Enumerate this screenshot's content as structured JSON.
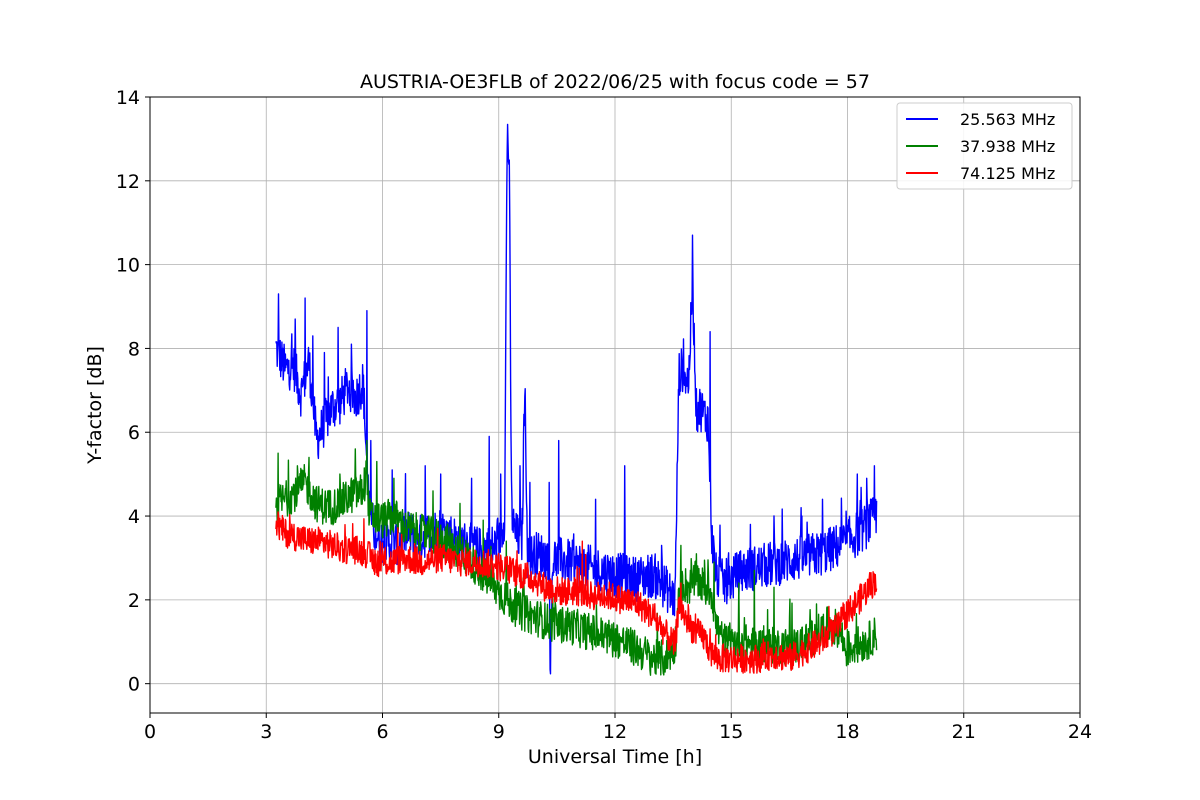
{
  "chart_data": {
    "type": "line",
    "title": "AUSTRIA-OE3FLB of 2022/06/25 with focus code = 57",
    "xlabel": "Universal Time [h]",
    "ylabel": "Y-factor [dB]",
    "xlim": [
      0,
      24
    ],
    "ylim": [
      -0.7,
      14
    ],
    "xticks": [
      0,
      3,
      6,
      9,
      12,
      15,
      18,
      21,
      24
    ],
    "yticks": [
      0,
      2,
      4,
      6,
      8,
      10,
      12,
      14
    ],
    "grid": true,
    "legend": "top-right",
    "series": [
      {
        "name": "25.563 MHz",
        "color": "#0000ff",
        "noise": 0.55,
        "x": [
          3.25,
          3.3,
          3.5,
          3.7,
          3.9,
          4.1,
          4.3,
          4.5,
          4.7,
          4.9,
          5.1,
          5.3,
          5.5,
          5.62,
          5.7,
          5.8,
          6.0,
          6.3,
          6.6,
          7.0,
          7.5,
          8.0,
          8.5,
          9.0,
          9.15,
          9.22,
          9.27,
          9.33,
          9.4,
          9.6,
          9.67,
          9.75,
          10.0,
          10.3,
          10.32,
          10.4,
          10.8,
          11.2,
          11.6,
          12.0,
          12.5,
          13.0,
          13.3,
          13.55,
          13.65,
          13.75,
          13.9,
          14.0,
          14.1,
          14.2,
          14.3,
          14.4,
          14.5,
          14.6,
          14.8,
          15.0,
          15.3,
          15.8,
          16.3,
          16.8,
          17.3,
          17.8,
          18.3,
          18.75
        ],
        "values": [
          8.0,
          7.9,
          7.5,
          7.6,
          6.9,
          7.7,
          5.8,
          6.2,
          6.6,
          6.7,
          7.1,
          6.8,
          7.2,
          4.8,
          4.0,
          3.6,
          3.4,
          3.3,
          3.6,
          3.5,
          3.7,
          3.4,
          3.2,
          3.3,
          4.0,
          13.3,
          12.4,
          4.2,
          3.6,
          3.4,
          7.2,
          3.0,
          3.1,
          3.0,
          0.2,
          3.0,
          2.9,
          2.8,
          2.7,
          2.6,
          2.5,
          2.6,
          2.3,
          2.0,
          7.4,
          7.5,
          7.2,
          9.6,
          6.5,
          6.6,
          6.4,
          6.3,
          3.5,
          2.6,
          2.4,
          2.5,
          2.7,
          2.8,
          2.9,
          3.0,
          3.1,
          3.3,
          3.6,
          4.0
        ],
        "spikes": [
          [
            3.32,
            9.3
          ],
          [
            3.75,
            8.7
          ],
          [
            4.0,
            9.2
          ],
          [
            4.2,
            8.3
          ],
          [
            4.5,
            7.9
          ],
          [
            4.85,
            8.5
          ],
          [
            5.2,
            8.1
          ],
          [
            5.6,
            8.9
          ],
          [
            5.7,
            5.8
          ],
          [
            6.25,
            5.1
          ],
          [
            7.1,
            5.2
          ],
          [
            7.5,
            5.0
          ],
          [
            8.3,
            4.9
          ],
          [
            8.75,
            5.9
          ],
          [
            9.05,
            5.0
          ],
          [
            9.55,
            5.2
          ],
          [
            9.8,
            4.8
          ],
          [
            10.3,
            4.8
          ],
          [
            10.55,
            5.8
          ],
          [
            11.5,
            4.4
          ],
          [
            12.25,
            5.2
          ],
          [
            13.2,
            3.3
          ],
          [
            14.45,
            8.4
          ],
          [
            15.5,
            3.8
          ],
          [
            16.1,
            4.0
          ],
          [
            16.8,
            4.2
          ],
          [
            17.35,
            4.4
          ],
          [
            18.25,
            5.0
          ],
          [
            18.5,
            4.9
          ],
          [
            18.7,
            5.2
          ]
        ]
      },
      {
        "name": "37.938 MHz",
        "color": "#008000",
        "noise": 0.45,
        "x": [
          3.25,
          3.5,
          3.8,
          4.0,
          4.3,
          4.6,
          4.9,
          5.2,
          5.5,
          5.6,
          5.65,
          6.0,
          6.3,
          6.6,
          7.0,
          7.4,
          7.8,
          8.2,
          8.5,
          8.8,
          9.0,
          9.3,
          9.6,
          9.9,
          10.2,
          10.5,
          10.8,
          11.1,
          11.5,
          11.9,
          12.2,
          12.6,
          13.0,
          13.3,
          13.55,
          13.65,
          13.75,
          13.9,
          14.1,
          14.3,
          14.5,
          14.6,
          14.8,
          15.0,
          15.3,
          15.6,
          15.9,
          16.3,
          16.7,
          17.1,
          17.5,
          17.8,
          17.95,
          18.2,
          18.5,
          18.75
        ],
        "values": [
          4.3,
          4.4,
          4.6,
          4.8,
          4.3,
          4.2,
          4.3,
          4.5,
          4.6,
          5.1,
          4.0,
          3.9,
          4.0,
          3.7,
          3.6,
          3.5,
          3.3,
          3.0,
          2.7,
          2.4,
          2.2,
          1.9,
          1.7,
          1.6,
          1.5,
          1.4,
          1.4,
          1.3,
          1.2,
          1.1,
          1.0,
          0.8,
          0.6,
          0.6,
          0.9,
          2.0,
          2.4,
          2.3,
          2.5,
          2.3,
          2.2,
          1.4,
          1.0,
          1.0,
          1.0,
          0.9,
          0.9,
          0.9,
          0.9,
          1.1,
          1.4,
          1.3,
          0.8,
          0.9,
          1.0,
          1.2
        ],
        "spikes": [
          [
            3.3,
            5.5
          ],
          [
            3.8,
            5.2
          ],
          [
            4.1,
            5.4
          ],
          [
            4.9,
            5.0
          ],
          [
            5.3,
            5.6
          ],
          [
            5.6,
            5.8
          ],
          [
            5.85,
            5.3
          ],
          [
            6.3,
            4.9
          ],
          [
            7.3,
            4.6
          ],
          [
            8.0,
            4.3
          ],
          [
            8.6,
            3.9
          ],
          [
            9.2,
            3.4
          ],
          [
            13.7,
            3.3
          ],
          [
            14.1,
            3.1
          ],
          [
            14.55,
            2.9
          ],
          [
            15.2,
            2.4
          ],
          [
            15.6,
            2.7
          ],
          [
            16.1,
            2.3
          ],
          [
            17.2,
            1.9
          ]
        ]
      },
      {
        "name": "74.125 MHz",
        "color": "#ff0000",
        "noise": 0.35,
        "x": [
          3.25,
          3.5,
          3.8,
          4.1,
          4.4,
          4.7,
          5.0,
          5.3,
          5.6,
          5.8,
          6.2,
          6.6,
          7.0,
          7.5,
          8.0,
          8.5,
          9.0,
          9.3,
          9.6,
          9.9,
          10.2,
          10.6,
          11.0,
          11.4,
          11.8,
          12.2,
          12.6,
          13.0,
          13.3,
          13.55,
          13.65,
          13.8,
          14.0,
          14.3,
          14.5,
          14.7,
          15.0,
          15.3,
          15.7,
          16.1,
          16.5,
          16.9,
          17.3,
          17.7,
          18.0,
          18.3,
          18.75
        ],
        "values": [
          3.8,
          3.6,
          3.5,
          3.4,
          3.4,
          3.3,
          3.2,
          3.2,
          3.1,
          2.9,
          2.9,
          3.0,
          2.9,
          3.0,
          2.9,
          2.9,
          2.8,
          2.7,
          2.6,
          2.5,
          2.3,
          2.2,
          2.2,
          2.1,
          2.1,
          2.0,
          1.9,
          1.6,
          1.2,
          0.9,
          1.9,
          1.6,
          1.3,
          1.1,
          0.7,
          0.6,
          0.6,
          0.6,
          0.6,
          0.7,
          0.6,
          0.8,
          1.0,
          1.3,
          1.7,
          2.0,
          2.5
        ],
        "spikes": [
          [
            3.3,
            4.1
          ],
          [
            11.15,
            3.4
          ],
          [
            13.7,
            2.4
          ]
        ]
      }
    ]
  }
}
